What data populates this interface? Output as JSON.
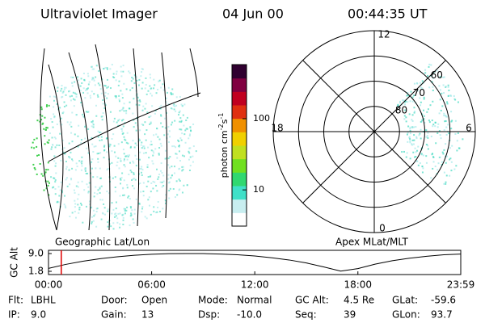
{
  "header": {
    "title": "Ultraviolet Imager",
    "date": "04 Jun 00",
    "time": "00:44:35 UT"
  },
  "left_panel": {
    "label": "Geographic Lat/Lon"
  },
  "colorbar": {
    "label_parts": [
      "photon cm",
      "-2",
      "s",
      "-1"
    ],
    "log": true,
    "ylim": [
      3.1,
      575
    ],
    "yticks": [
      10,
      100
    ],
    "colors": [
      "#ffffff",
      "#c8eef0",
      "#40e0c8",
      "#30d870",
      "#70e020",
      "#c0e020",
      "#f0d000",
      "#f09000",
      "#e03010",
      "#c00020",
      "#800040",
      "#300030"
    ]
  },
  "right_panel": {
    "label": "Apex MLat/MLT",
    "mlt_labels": [
      "12",
      "18",
      "6",
      "0"
    ],
    "lat_rings": [
      80,
      70,
      60
    ]
  },
  "timeline": {
    "ylabel": "GC Alt",
    "ylim": [
      1.8,
      9.0
    ],
    "yticks": [
      {
        "value": 9.0,
        "label": "9.0"
      },
      1.8
    ],
    "xlim": [
      0,
      1439
    ],
    "xticks": [
      {
        "value": 0,
        "label": "00:00"
      },
      {
        "value": 360,
        "label": "06:00"
      },
      {
        "value": 720,
        "label": "12:00"
      },
      {
        "value": 1080,
        "label": "18:00"
      },
      {
        "value": 1439,
        "label": "23:59"
      }
    ],
    "marker": 44.58,
    "marker_color": "#e00000",
    "x": [
      0,
      60,
      120,
      180,
      240,
      300,
      360,
      420,
      480,
      540,
      600,
      660,
      720,
      780,
      840,
      900,
      960,
      1020,
      1080,
      1140,
      1200,
      1260,
      1320,
      1380,
      1439
    ],
    "values": [
      3.0,
      4.6,
      5.9,
      6.9,
      7.7,
      8.3,
      8.7,
      8.95,
      9.0,
      9.0,
      8.8,
      8.5,
      8.0,
      7.3,
      6.4,
      5.2,
      3.6,
      1.9,
      2.9,
      4.7,
      6.1,
      7.1,
      7.9,
      8.5,
      8.8
    ]
  },
  "footer": [
    [
      [
        "Flt:",
        "LBHL"
      ],
      [
        "Door:",
        "Open"
      ],
      [
        "Mode:",
        "Normal"
      ],
      [
        "GC Alt:",
        "4.5 Re"
      ],
      [
        "GLat:",
        "-59.6"
      ]
    ],
    [
      [
        "IP:",
        "9.0"
      ],
      [
        "Gain:",
        "13"
      ],
      [
        "Dsp:",
        "-10.0"
      ],
      [
        "Seq:",
        "39"
      ],
      [
        "GLon:",
        "93.7"
      ]
    ]
  ]
}
